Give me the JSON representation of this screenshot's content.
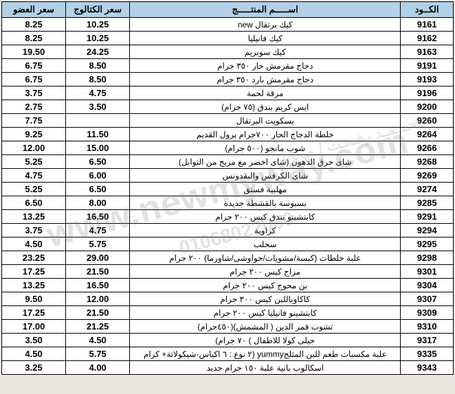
{
  "table": {
    "headers": {
      "code": "الكــود",
      "name": "اســـــم المنتـــــج",
      "catalog_price": "سعر الكتالوج",
      "member_price": "سعر العضو"
    },
    "col_widths": {
      "code": 70,
      "name": 360,
      "catalog": 85,
      "member": 85
    },
    "header_bg": "#b3d1e6",
    "cell_bg": "#ffffff",
    "border_color": "#000000",
    "font_size_header": 13,
    "font_size_cell": 12,
    "rows": [
      {
        "code": "9161",
        "name": "كيك برتقال new",
        "catalog": "10.25",
        "member": "8.25"
      },
      {
        "code": "9162",
        "name": "كيك فانيليا",
        "catalog": "10.25",
        "member": "8.25"
      },
      {
        "code": "9163",
        "name": "كيك سوبريم",
        "catalog": "24.25",
        "member": "19.50"
      },
      {
        "code": "9191",
        "name": "دجاج مقرمش حار ٣٥٠ جرام",
        "catalog": "8.50",
        "member": "6.75"
      },
      {
        "code": "9193",
        "name": "دجاج مقرمش بارد ٣٥٠ جرام",
        "catalog": "8.50",
        "member": "6.75"
      },
      {
        "code": "9196",
        "name": "مرقة لحمة",
        "catalog": "4.75",
        "member": "3.75"
      },
      {
        "code": "9200",
        "name": "ايس كريم بندق (٧٥ جرام)",
        "catalog": "3.50",
        "member": "2.75"
      },
      {
        "code": "9260",
        "name": "بسكويت البرتقال",
        "catalog": "",
        "member": "7.75"
      },
      {
        "code": "9264",
        "name": "خلطة الدجاج الحار ٧٠٠جرام برول القديم",
        "catalog": "11.50",
        "member": "9.25"
      },
      {
        "code": "9266",
        "name": "شوب مانجو (٥٠٠ جرام)",
        "catalog": "15.00",
        "member": "12.00"
      },
      {
        "code": "9268",
        "name": "شاى حرق الدهون (شاى اخضر مع مزيج من التوابل)",
        "catalog": "6.50",
        "member": "5.25"
      },
      {
        "code": "9269",
        "name": "شاى الكرفس والبقدونس",
        "catalog": "6.00",
        "member": "4.75"
      },
      {
        "code": "9274",
        "name": "مهلبية فستق",
        "catalog": "6.50",
        "member": "5.25"
      },
      {
        "code": "9285",
        "name": "بسبوسة بالقشطة جديدة",
        "catalog": "8.00",
        "member": "6.50"
      },
      {
        "code": "9291",
        "name": "كابتشينو بندق كيس ٢٠٠ جرام",
        "catalog": "16.50",
        "member": "13.25"
      },
      {
        "code": "9294",
        "name": "كراوية",
        "catalog": "4.75",
        "member": "3.75"
      },
      {
        "code": "9295",
        "name": "سحلب",
        "catalog": "5.75",
        "member": "4.50"
      },
      {
        "code": "9298",
        "name": "علبة خلطات (كبسة/مشويات/حواوشى/شاورما) ٢٠٠ جرام",
        "catalog": "29.00",
        "member": "23.25"
      },
      {
        "code": "9301",
        "name": "مزاج كيس ٢٠٠ جرام",
        "catalog": "21.50",
        "member": "17.25"
      },
      {
        "code": "9304",
        "name": "بن محوج كيس ٢٠٠ جرام",
        "catalog": "16.50",
        "member": "13.25"
      },
      {
        "code": "9307",
        "name": "كاكاوباللبن كيس ٣٠٠ جرام",
        "catalog": "12.00",
        "member": "9.50"
      },
      {
        "code": "9309",
        "name": "كابتشينو فانيليا كيس ٢٠٠ جرام",
        "catalog": "21.50",
        "member": "17.25"
      },
      {
        "code": "9310",
        "name": "تشوب قمر الدين ( المشمش)(٤٥٠جرام)",
        "catalog": "21.25",
        "member": "17.00"
      },
      {
        "code": "9317",
        "name": "جيلى كولا للاطفال ) ٧٠ جرام)",
        "catalog": "4.50",
        "member": "3.50"
      },
      {
        "code": "9335",
        "name": "علبة مكسبات طعم للبن المثلجyummy (٢ نوع : ٦ اكياس-شيكولاتة+ كرام",
        "catalog": "5.75",
        "member": "4.50"
      },
      {
        "code": "9343",
        "name": "اسكالوب بانية علبة ١٥٠ جرام  جديد",
        "catalog": "4.00",
        "member": "3.25"
      }
    ]
  },
  "watermarks": {
    "url": "www.newmyway.com",
    "phone": "01068022080",
    "side": "محـــمـد رفـعـت / موبايل"
  },
  "page_bg": "#e8e4e0"
}
